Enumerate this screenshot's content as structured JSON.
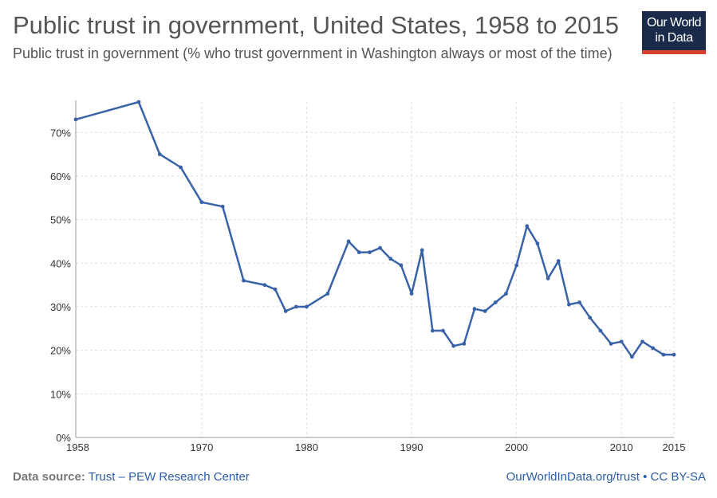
{
  "header": {
    "title": "Public trust in government, United States, 1958 to 2015",
    "subtitle": "Public trust in government (% who trust government in Washington always or most of the time)"
  },
  "logo": {
    "line1": "Our World",
    "line2": "in Data"
  },
  "footer": {
    "source_label": "Data source:",
    "source_link": "Trust – PEW Research Center",
    "site_link": "OurWorldInData.org/trust",
    "separator": "•",
    "license": "CC BY-SA"
  },
  "colors": {
    "line": "#3a62a8",
    "grid": "#dddddd",
    "logo_bg": "#1a2a4a",
    "logo_accent": "#d6402c"
  },
  "chart_data": {
    "type": "line",
    "title": "Public trust in government, United States, 1958 to 2015",
    "xlim": [
      1958,
      2015
    ],
    "ylim": [
      0,
      77
    ],
    "x_ticks": [
      1958,
      1970,
      1980,
      1990,
      2000,
      2010,
      2015
    ],
    "y_ticks": [
      0,
      10,
      20,
      30,
      40,
      50,
      60,
      70
    ],
    "y_tick_labels": [
      "0%",
      "10%",
      "20%",
      "30%",
      "40%",
      "50%",
      "60%",
      "70%"
    ],
    "grid": true,
    "series": [
      {
        "x": [
          1958,
          1964,
          1966,
          1968,
          1970,
          1972,
          1974,
          1976,
          1977,
          1978,
          1979,
          1980,
          1982,
          1984,
          1985,
          1986,
          1987,
          1988,
          1989,
          1990,
          1991,
          1992,
          1993,
          1994,
          1995,
          1996,
          1997,
          1998,
          1999,
          2000,
          2001,
          2002,
          2003,
          2004,
          2005,
          2006,
          2007,
          2008,
          2009,
          2010,
          2011,
          2012,
          2013,
          2014,
          2015
        ],
        "y": [
          73,
          77,
          65,
          62,
          54,
          53,
          36,
          35,
          34,
          29,
          30,
          30,
          33,
          45,
          42.5,
          42.5,
          43.5,
          41,
          39.5,
          33,
          43,
          24.5,
          24.5,
          21,
          21.5,
          29.5,
          29,
          31,
          33,
          39.5,
          48.5,
          44.5,
          36.5,
          40.5,
          30.5,
          31,
          27.5,
          24.5,
          21.5,
          22,
          18.5,
          22,
          20.5,
          19,
          19
        ]
      }
    ]
  }
}
